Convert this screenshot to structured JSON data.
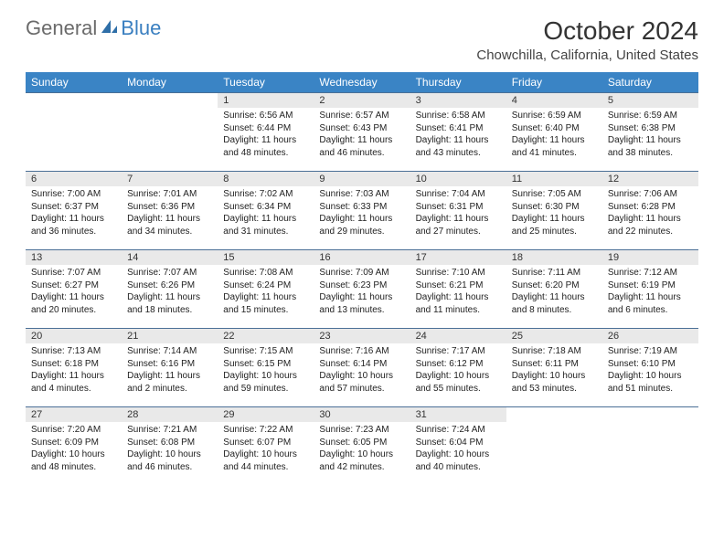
{
  "logo": {
    "word1": "General",
    "word2": "Blue"
  },
  "title": "October 2024",
  "location": "Chowchilla, California, United States",
  "colors": {
    "header_bg": "#3a84c5",
    "header_text": "#ffffff",
    "daynum_bg": "#e9e9e9",
    "rule": "#4a6f96",
    "logo_gray": "#6b6b6b",
    "logo_blue": "#3a7fc0"
  },
  "dayNames": [
    "Sunday",
    "Monday",
    "Tuesday",
    "Wednesday",
    "Thursday",
    "Friday",
    "Saturday"
  ],
  "weeks": [
    [
      null,
      null,
      {
        "n": "1",
        "l1": "Sunrise: 6:56 AM",
        "l2": "Sunset: 6:44 PM",
        "l3": "Daylight: 11 hours",
        "l4": "and 48 minutes."
      },
      {
        "n": "2",
        "l1": "Sunrise: 6:57 AM",
        "l2": "Sunset: 6:43 PM",
        "l3": "Daylight: 11 hours",
        "l4": "and 46 minutes."
      },
      {
        "n": "3",
        "l1": "Sunrise: 6:58 AM",
        "l2": "Sunset: 6:41 PM",
        "l3": "Daylight: 11 hours",
        "l4": "and 43 minutes."
      },
      {
        "n": "4",
        "l1": "Sunrise: 6:59 AM",
        "l2": "Sunset: 6:40 PM",
        "l3": "Daylight: 11 hours",
        "l4": "and 41 minutes."
      },
      {
        "n": "5",
        "l1": "Sunrise: 6:59 AM",
        "l2": "Sunset: 6:38 PM",
        "l3": "Daylight: 11 hours",
        "l4": "and 38 minutes."
      }
    ],
    [
      {
        "n": "6",
        "l1": "Sunrise: 7:00 AM",
        "l2": "Sunset: 6:37 PM",
        "l3": "Daylight: 11 hours",
        "l4": "and 36 minutes."
      },
      {
        "n": "7",
        "l1": "Sunrise: 7:01 AM",
        "l2": "Sunset: 6:36 PM",
        "l3": "Daylight: 11 hours",
        "l4": "and 34 minutes."
      },
      {
        "n": "8",
        "l1": "Sunrise: 7:02 AM",
        "l2": "Sunset: 6:34 PM",
        "l3": "Daylight: 11 hours",
        "l4": "and 31 minutes."
      },
      {
        "n": "9",
        "l1": "Sunrise: 7:03 AM",
        "l2": "Sunset: 6:33 PM",
        "l3": "Daylight: 11 hours",
        "l4": "and 29 minutes."
      },
      {
        "n": "10",
        "l1": "Sunrise: 7:04 AM",
        "l2": "Sunset: 6:31 PM",
        "l3": "Daylight: 11 hours",
        "l4": "and 27 minutes."
      },
      {
        "n": "11",
        "l1": "Sunrise: 7:05 AM",
        "l2": "Sunset: 6:30 PM",
        "l3": "Daylight: 11 hours",
        "l4": "and 25 minutes."
      },
      {
        "n": "12",
        "l1": "Sunrise: 7:06 AM",
        "l2": "Sunset: 6:28 PM",
        "l3": "Daylight: 11 hours",
        "l4": "and 22 minutes."
      }
    ],
    [
      {
        "n": "13",
        "l1": "Sunrise: 7:07 AM",
        "l2": "Sunset: 6:27 PM",
        "l3": "Daylight: 11 hours",
        "l4": "and 20 minutes."
      },
      {
        "n": "14",
        "l1": "Sunrise: 7:07 AM",
        "l2": "Sunset: 6:26 PM",
        "l3": "Daylight: 11 hours",
        "l4": "and 18 minutes."
      },
      {
        "n": "15",
        "l1": "Sunrise: 7:08 AM",
        "l2": "Sunset: 6:24 PM",
        "l3": "Daylight: 11 hours",
        "l4": "and 15 minutes."
      },
      {
        "n": "16",
        "l1": "Sunrise: 7:09 AM",
        "l2": "Sunset: 6:23 PM",
        "l3": "Daylight: 11 hours",
        "l4": "and 13 minutes."
      },
      {
        "n": "17",
        "l1": "Sunrise: 7:10 AM",
        "l2": "Sunset: 6:21 PM",
        "l3": "Daylight: 11 hours",
        "l4": "and 11 minutes."
      },
      {
        "n": "18",
        "l1": "Sunrise: 7:11 AM",
        "l2": "Sunset: 6:20 PM",
        "l3": "Daylight: 11 hours",
        "l4": "and 8 minutes."
      },
      {
        "n": "19",
        "l1": "Sunrise: 7:12 AM",
        "l2": "Sunset: 6:19 PM",
        "l3": "Daylight: 11 hours",
        "l4": "and 6 minutes."
      }
    ],
    [
      {
        "n": "20",
        "l1": "Sunrise: 7:13 AM",
        "l2": "Sunset: 6:18 PM",
        "l3": "Daylight: 11 hours",
        "l4": "and 4 minutes."
      },
      {
        "n": "21",
        "l1": "Sunrise: 7:14 AM",
        "l2": "Sunset: 6:16 PM",
        "l3": "Daylight: 11 hours",
        "l4": "and 2 minutes."
      },
      {
        "n": "22",
        "l1": "Sunrise: 7:15 AM",
        "l2": "Sunset: 6:15 PM",
        "l3": "Daylight: 10 hours",
        "l4": "and 59 minutes."
      },
      {
        "n": "23",
        "l1": "Sunrise: 7:16 AM",
        "l2": "Sunset: 6:14 PM",
        "l3": "Daylight: 10 hours",
        "l4": "and 57 minutes."
      },
      {
        "n": "24",
        "l1": "Sunrise: 7:17 AM",
        "l2": "Sunset: 6:12 PM",
        "l3": "Daylight: 10 hours",
        "l4": "and 55 minutes."
      },
      {
        "n": "25",
        "l1": "Sunrise: 7:18 AM",
        "l2": "Sunset: 6:11 PM",
        "l3": "Daylight: 10 hours",
        "l4": "and 53 minutes."
      },
      {
        "n": "26",
        "l1": "Sunrise: 7:19 AM",
        "l2": "Sunset: 6:10 PM",
        "l3": "Daylight: 10 hours",
        "l4": "and 51 minutes."
      }
    ],
    [
      {
        "n": "27",
        "l1": "Sunrise: 7:20 AM",
        "l2": "Sunset: 6:09 PM",
        "l3": "Daylight: 10 hours",
        "l4": "and 48 minutes."
      },
      {
        "n": "28",
        "l1": "Sunrise: 7:21 AM",
        "l2": "Sunset: 6:08 PM",
        "l3": "Daylight: 10 hours",
        "l4": "and 46 minutes."
      },
      {
        "n": "29",
        "l1": "Sunrise: 7:22 AM",
        "l2": "Sunset: 6:07 PM",
        "l3": "Daylight: 10 hours",
        "l4": "and 44 minutes."
      },
      {
        "n": "30",
        "l1": "Sunrise: 7:23 AM",
        "l2": "Sunset: 6:05 PM",
        "l3": "Daylight: 10 hours",
        "l4": "and 42 minutes."
      },
      {
        "n": "31",
        "l1": "Sunrise: 7:24 AM",
        "l2": "Sunset: 6:04 PM",
        "l3": "Daylight: 10 hours",
        "l4": "and 40 minutes."
      },
      null,
      null
    ]
  ]
}
